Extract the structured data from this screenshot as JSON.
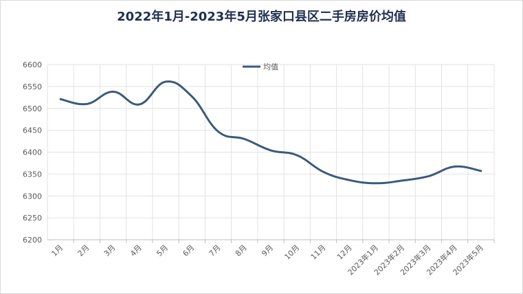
{
  "chart_data": {
    "type": "line",
    "title": "2022年1月-2023年5月张家口县区二手房房价均值",
    "xlabel": "",
    "ylabel": "",
    "categories": [
      "1月",
      "2月",
      "3月",
      "4月",
      "5月",
      "6月",
      "7月",
      "8月",
      "9月",
      "10月",
      "11月",
      "12月",
      "2023年1月",
      "2023年2月",
      "2023年3月",
      "2023年4月",
      "2023年5月"
    ],
    "series": [
      {
        "name": "均值",
        "values": [
          6521,
          6510,
          6538,
          6509,
          6561,
          6527,
          6447,
          6430,
          6404,
          6393,
          6355,
          6336,
          6329,
          6335,
          6345,
          6367,
          6357
        ]
      }
    ],
    "ylim": [
      6200,
      6600
    ],
    "yticks": [
      6200,
      6250,
      6300,
      6350,
      6400,
      6450,
      6500,
      6550,
      6600
    ],
    "grid": true,
    "legend_position": "top-center",
    "colors": {
      "line": "#3b5a7a",
      "grid": "#e2e2e2",
      "axis": "#bfbfbf",
      "title": "#1f2f4f"
    }
  }
}
